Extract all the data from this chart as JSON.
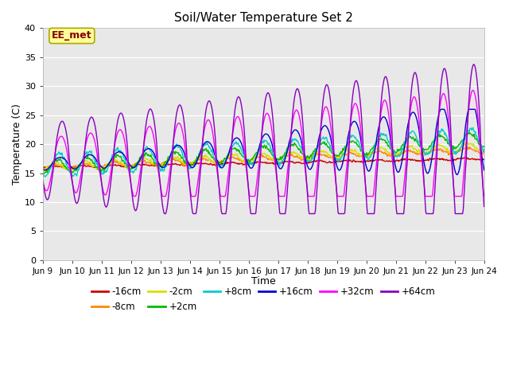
{
  "title": "Soil/Water Temperature Set 2",
  "xlabel": "Time",
  "ylabel": "Temperature (C)",
  "ylim": [
    0,
    40
  ],
  "yticks": [
    0,
    5,
    10,
    15,
    20,
    25,
    30,
    35,
    40
  ],
  "xtick_labels": [
    "Jun 9",
    "Jun 10",
    "Jun 11",
    "Jun 12",
    "Jun 13",
    "Jun 14",
    "Jun 15",
    "Jun 16",
    "Jun 17",
    "Jun 18",
    "Jun 19",
    "Jun 20",
    "Jun 21",
    "Jun 22",
    "Jun 23",
    "Jun 24"
  ],
  "bg_color": "#e8e8e8",
  "fig_color": "#ffffff",
  "legend_items": [
    {
      "label": "-16cm",
      "color": "#cc0000"
    },
    {
      "label": "-8cm",
      "color": "#ff8800"
    },
    {
      "label": "-2cm",
      "color": "#dddd00"
    },
    {
      "label": "+2cm",
      "color": "#00bb00"
    },
    {
      "label": "+8cm",
      "color": "#00cccc"
    },
    {
      "label": "+16cm",
      "color": "#0000cc"
    },
    {
      "label": "+32cm",
      "color": "#ff00ff"
    },
    {
      "label": "+64cm",
      "color": "#8800bb"
    }
  ],
  "annotation_text": "EE_met",
  "annotation_color": "#880000",
  "annotation_bg": "#ffff99",
  "annotation_border": "#aaaa00"
}
